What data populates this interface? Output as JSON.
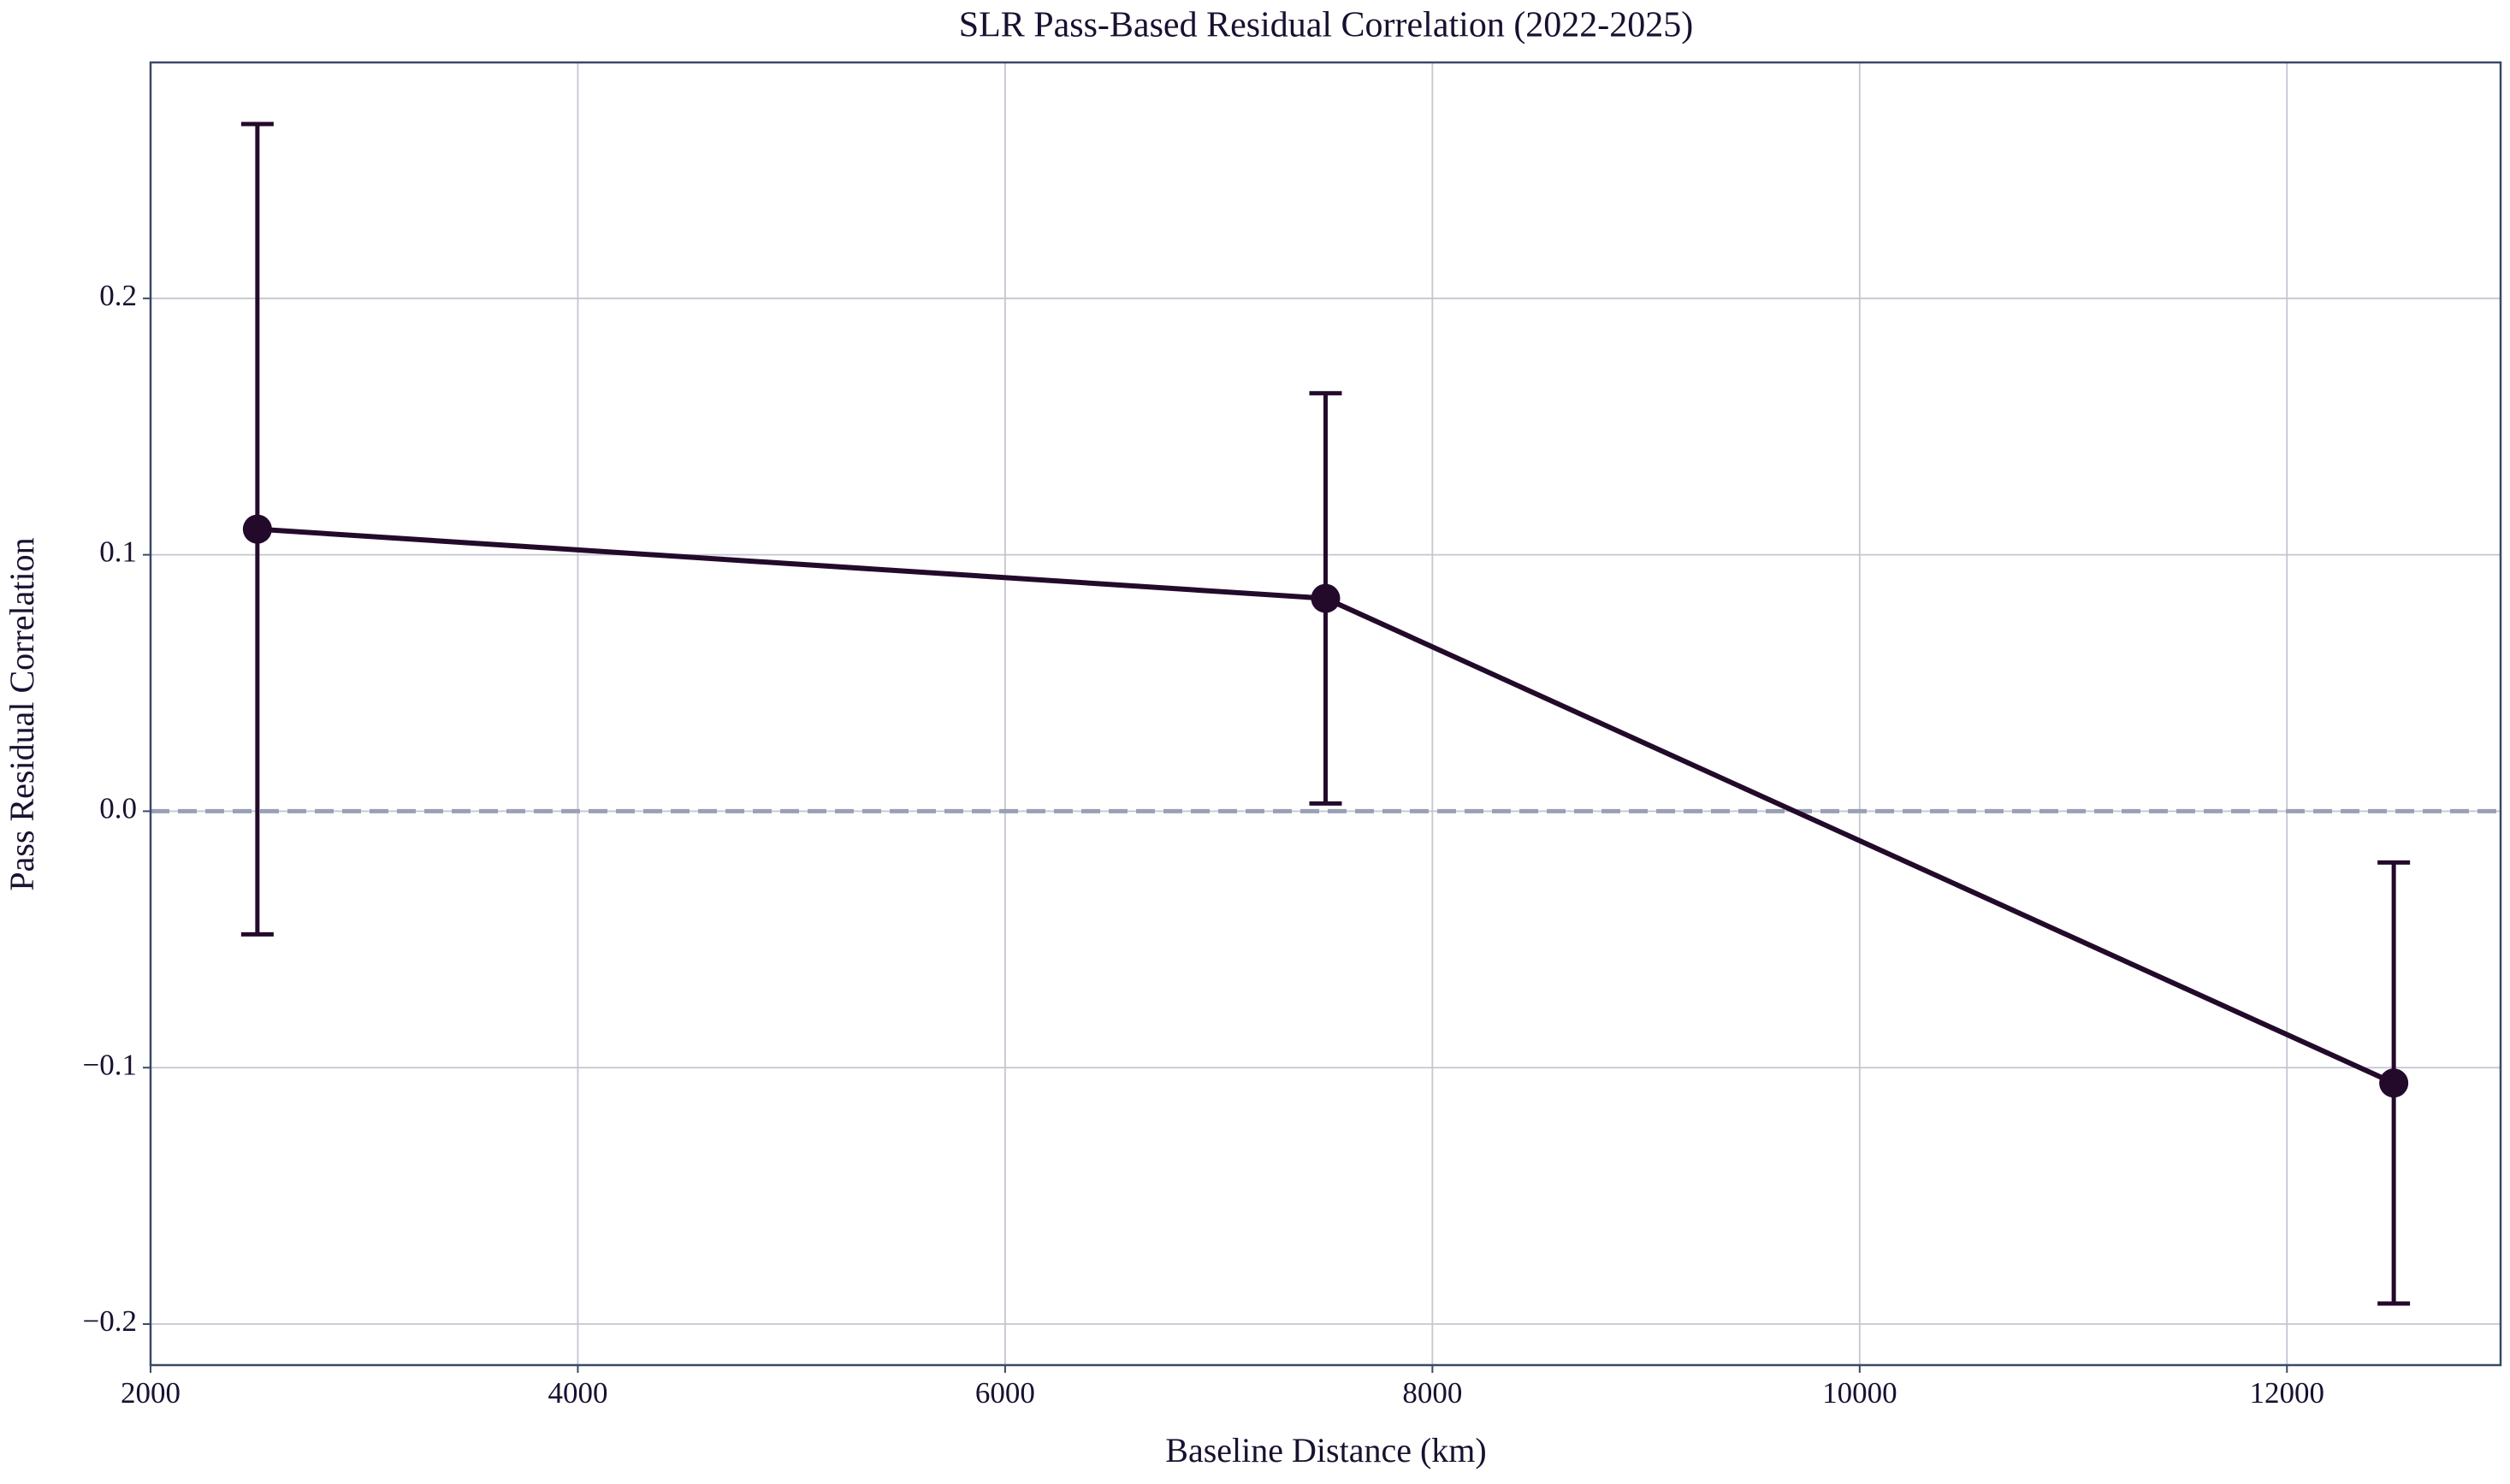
{
  "chart_data": {
    "type": "errorbar-line",
    "title": "SLR Pass-Based Residual Correlation (2022-2025)",
    "x_label": "Baseline Distance (km)",
    "y_label": "Pass Residual Correlation",
    "x": [
      2500,
      7500,
      12500
    ],
    "values": [
      0.11,
      0.083,
      -0.106
    ],
    "errors": [
      0.158,
      0.08,
      0.086
    ],
    "color": "#230a2b",
    "reference_line": 0,
    "reference_color": "#9aa0b4",
    "xlim": [
      2000,
      13000
    ],
    "xticks": [
      2000,
      4000,
      6000,
      8000,
      10000,
      12000
    ],
    "ylim": [
      -0.216,
      0.292
    ],
    "yticks": [
      {
        "value": -0.2,
        "label": "−0.2"
      },
      {
        "value": -0.1,
        "label": "−0.1"
      },
      {
        "value": 0,
        "label": "0.0"
      },
      0.1,
      0.2
    ],
    "grid": true
  }
}
